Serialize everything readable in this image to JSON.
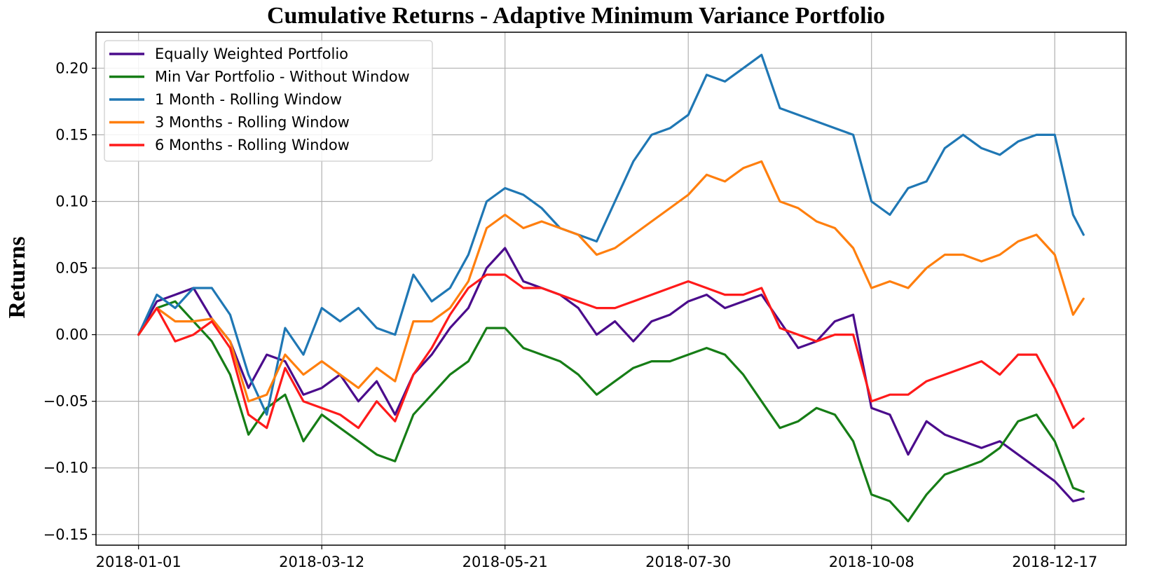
{
  "chart_data": {
    "type": "line",
    "title": "Cumulative Returns - Adaptive Minimum Variance Portfolio",
    "xlabel": "",
    "ylabel": "Returns",
    "x_start": "2018-01-01",
    "x_end": "2018-12-28",
    "x_ticks": [
      "2018-01-01",
      "2018-03-12",
      "2018-05-21",
      "2018-07-30",
      "2018-10-08",
      "2018-12-17"
    ],
    "y_ticks": [
      "−0.15",
      "−0.10",
      "−0.05",
      "0.00",
      "0.05",
      "0.10",
      "0.15",
      "0.20"
    ],
    "ylim": [
      -0.158,
      0.227
    ],
    "grid": true,
    "legend_position": "top-left",
    "x_dates": [
      "2018-01-01",
      "2018-01-08",
      "2018-01-15",
      "2018-01-22",
      "2018-01-29",
      "2018-02-05",
      "2018-02-12",
      "2018-02-19",
      "2018-02-26",
      "2018-03-05",
      "2018-03-12",
      "2018-03-19",
      "2018-03-26",
      "2018-04-02",
      "2018-04-09",
      "2018-04-16",
      "2018-04-23",
      "2018-04-30",
      "2018-05-07",
      "2018-05-14",
      "2018-05-21",
      "2018-05-28",
      "2018-06-04",
      "2018-06-11",
      "2018-06-18",
      "2018-06-25",
      "2018-07-02",
      "2018-07-09",
      "2018-07-16",
      "2018-07-23",
      "2018-07-30",
      "2018-08-06",
      "2018-08-13",
      "2018-08-20",
      "2018-08-27",
      "2018-09-03",
      "2018-09-10",
      "2018-09-17",
      "2018-09-24",
      "2018-10-01",
      "2018-10-08",
      "2018-10-15",
      "2018-10-22",
      "2018-10-29",
      "2018-11-05",
      "2018-11-12",
      "2018-11-19",
      "2018-11-26",
      "2018-12-03",
      "2018-12-10",
      "2018-12-17",
      "2018-12-24",
      "2018-12-28"
    ],
    "series": [
      {
        "name": "Equally Weighted Portfolio",
        "color": "#4b0c8c",
        "values": [
          0.0,
          0.025,
          0.03,
          0.035,
          0.012,
          -0.005,
          -0.04,
          -0.015,
          -0.02,
          -0.045,
          -0.04,
          -0.03,
          -0.05,
          -0.035,
          -0.06,
          -0.03,
          -0.015,
          0.005,
          0.02,
          0.05,
          0.065,
          0.04,
          0.035,
          0.03,
          0.02,
          0.0,
          0.01,
          -0.005,
          0.01,
          0.015,
          0.025,
          0.03,
          0.02,
          0.025,
          0.03,
          0.01,
          -0.01,
          -0.005,
          0.01,
          0.015,
          -0.055,
          -0.06,
          -0.09,
          -0.065,
          -0.075,
          -0.08,
          -0.085,
          -0.08,
          -0.09,
          -0.1,
          -0.11,
          -0.125,
          -0.123
        ]
      },
      {
        "name": "Min Var Portfolio - Without Window",
        "color": "#167d16",
        "values": [
          0.0,
          0.02,
          0.025,
          0.01,
          -0.005,
          -0.03,
          -0.075,
          -0.055,
          -0.045,
          -0.08,
          -0.06,
          -0.07,
          -0.08,
          -0.09,
          -0.095,
          -0.06,
          -0.045,
          -0.03,
          -0.02,
          0.005,
          0.005,
          -0.01,
          -0.015,
          -0.02,
          -0.03,
          -0.045,
          -0.035,
          -0.025,
          -0.02,
          -0.02,
          -0.015,
          -0.01,
          -0.015,
          -0.03,
          -0.05,
          -0.07,
          -0.065,
          -0.055,
          -0.06,
          -0.08,
          -0.12,
          -0.125,
          -0.14,
          -0.12,
          -0.105,
          -0.1,
          -0.095,
          -0.085,
          -0.065,
          -0.06,
          -0.08,
          -0.115,
          -0.118
        ]
      },
      {
        "name": "1 Month - Rolling Window",
        "color": "#1f77b4",
        "values": [
          0.0,
          0.03,
          0.02,
          0.035,
          0.035,
          0.015,
          -0.03,
          -0.06,
          0.005,
          -0.015,
          0.02,
          0.01,
          0.02,
          0.005,
          0.0,
          0.045,
          0.025,
          0.035,
          0.06,
          0.1,
          0.11,
          0.105,
          0.095,
          0.08,
          0.075,
          0.07,
          0.1,
          0.13,
          0.15,
          0.155,
          0.165,
          0.195,
          0.19,
          0.2,
          0.21,
          0.17,
          0.165,
          0.16,
          0.155,
          0.15,
          0.1,
          0.09,
          0.11,
          0.115,
          0.14,
          0.15,
          0.14,
          0.135,
          0.145,
          0.15,
          0.15,
          0.09,
          0.075
        ]
      },
      {
        "name": "3 Months - Rolling Window",
        "color": "#ff7f0e",
        "values": [
          0.0,
          0.02,
          0.01,
          0.01,
          0.012,
          -0.005,
          -0.05,
          -0.045,
          -0.015,
          -0.03,
          -0.02,
          -0.03,
          -0.04,
          -0.025,
          -0.035,
          0.01,
          0.01,
          0.02,
          0.04,
          0.08,
          0.09,
          0.08,
          0.085,
          0.08,
          0.075,
          0.06,
          0.065,
          0.075,
          0.085,
          0.095,
          0.105,
          0.12,
          0.115,
          0.125,
          0.13,
          0.1,
          0.095,
          0.085,
          0.08,
          0.065,
          0.035,
          0.04,
          0.035,
          0.05,
          0.06,
          0.06,
          0.055,
          0.06,
          0.07,
          0.075,
          0.06,
          0.015,
          0.027
        ]
      },
      {
        "name": "6 Months - Rolling Window",
        "color": "#ff1a1a",
        "values": [
          0.0,
          0.02,
          -0.005,
          0.0,
          0.01,
          -0.01,
          -0.06,
          -0.07,
          -0.025,
          -0.05,
          -0.055,
          -0.06,
          -0.07,
          -0.05,
          -0.065,
          -0.03,
          -0.01,
          0.015,
          0.035,
          0.045,
          0.045,
          0.035,
          0.035,
          0.03,
          0.025,
          0.02,
          0.02,
          0.025,
          0.03,
          0.035,
          0.04,
          0.035,
          0.03,
          0.03,
          0.035,
          0.005,
          0.0,
          -0.005,
          0.0,
          0.0,
          -0.05,
          -0.045,
          -0.045,
          -0.035,
          -0.03,
          -0.025,
          -0.02,
          -0.03,
          -0.015,
          -0.015,
          -0.04,
          -0.07,
          -0.063
        ]
      }
    ]
  }
}
